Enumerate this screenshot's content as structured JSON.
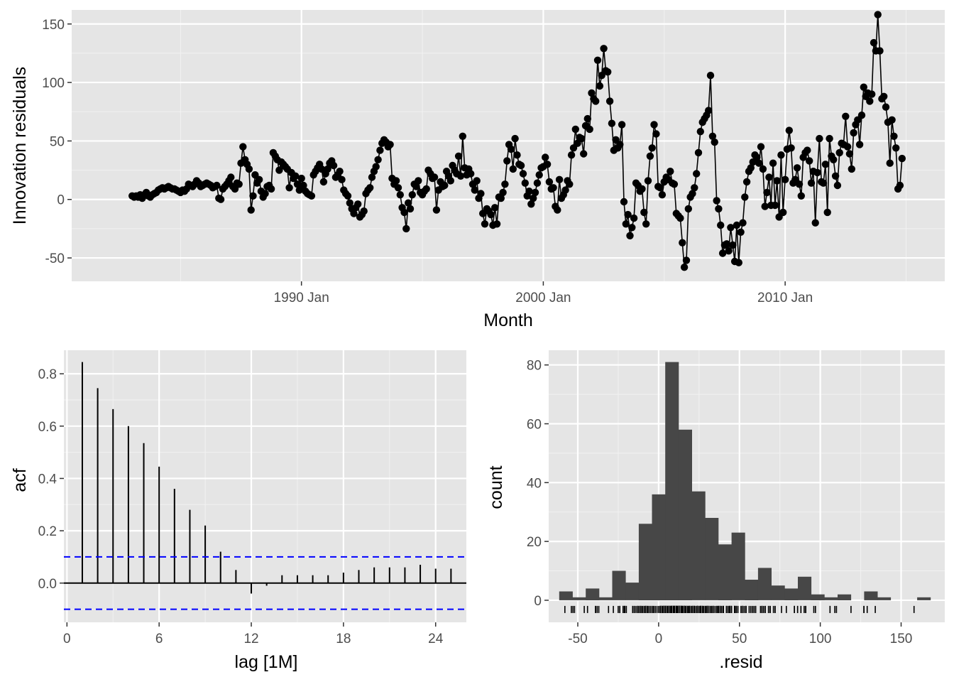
{
  "colors": {
    "panel": "#e5e5e5",
    "grid_major": "#ffffff",
    "grid_minor": "#f2f2f2",
    "data": "#000000",
    "ci": "#0000ff",
    "hist": "#474747"
  },
  "chart_data": [
    {
      "type": "line",
      "xlabel": "Month",
      "ylabel": "Innovation residuals",
      "x_ticks": [
        "1990 Jan",
        "2000 Jan",
        "2010 Jan"
      ],
      "y_ticks": [
        "-50",
        "0",
        "50",
        "100",
        "150"
      ],
      "xlim": [
        1980.5,
        2016.6
      ],
      "ylim": [
        -70,
        162
      ],
      "x_start": 1983.0,
      "x_step": 0.08333,
      "y": [
        3,
        2,
        3,
        2,
        4,
        1,
        4,
        6,
        3,
        2,
        4,
        5,
        6,
        8,
        9,
        10,
        9,
        10,
        11,
        10,
        9,
        9,
        8,
        7,
        6,
        8,
        7,
        9,
        13,
        12,
        11,
        13,
        16,
        14,
        11,
        12,
        13,
        14,
        13,
        12,
        10,
        11,
        12,
        1,
        0,
        9,
        11,
        13,
        16,
        19,
        11,
        9,
        14,
        13,
        31,
        45,
        34,
        30,
        26,
        -9,
        3,
        21,
        14,
        17,
        7,
        2,
        5,
        11,
        12,
        9,
        40,
        37,
        34,
        25,
        32,
        30,
        28,
        26,
        10,
        23,
        18,
        20,
        13,
        8,
        18,
        12,
        7,
        5,
        4,
        3,
        21,
        24,
        27,
        30,
        26,
        15,
        22,
        26,
        31,
        33,
        29,
        19,
        21,
        24,
        17,
        8,
        5,
        3,
        -3,
        -8,
        -12,
        -7,
        -4,
        -15,
        -13,
        -10,
        5,
        8,
        10,
        19,
        24,
        28,
        34,
        42,
        48,
        51,
        49,
        45,
        47,
        18,
        13,
        16,
        10,
        4,
        -7,
        -11,
        -25,
        -3,
        -8,
        4,
        13,
        11,
        16,
        6,
        4,
        7,
        9,
        25,
        22,
        18,
        19,
        -9,
        8,
        15,
        11,
        12,
        24,
        20,
        16,
        29,
        25,
        22,
        37,
        20,
        54,
        27,
        21,
        26,
        22,
        13,
        8,
        16,
        1,
        5,
        -12,
        -21,
        -8,
        -10,
        -13,
        -22,
        -7,
        -21,
        2,
        1,
        6,
        13,
        33,
        47,
        43,
        26,
        52,
        38,
        30,
        29,
        22,
        14,
        3,
        7,
        -4,
        1,
        6,
        14,
        21,
        27,
        28,
        36,
        30,
        15,
        9,
        10,
        -6,
        -9,
        17,
        1,
        4,
        8,
        16,
        13,
        38,
        44,
        60,
        48,
        53,
        52,
        39,
        63,
        69,
        60,
        91,
        86,
        84,
        119,
        97,
        106,
        129,
        110,
        109,
        84,
        65,
        42,
        51,
        44,
        47,
        64,
        -2,
        -21,
        -13,
        -31,
        -24,
        -16,
        14,
        12,
        7,
        9,
        -11,
        -21,
        16,
        37,
        44,
        64,
        56,
        11,
        10,
        4,
        15,
        19,
        17,
        24,
        14,
        13,
        -12,
        -14,
        -16,
        -37,
        -58,
        -52,
        -8,
        2,
        5,
        10,
        22,
        40,
        58,
        66,
        69,
        72,
        76,
        106,
        54,
        49,
        -1,
        -8,
        -22,
        -46,
        -39,
        -38,
        -44,
        -24,
        -39,
        -53,
        -22,
        -54,
        -28,
        -20,
        2,
        15,
        24,
        27,
        32,
        38,
        36,
        31,
        45,
        26,
        -6,
        6,
        19,
        -5,
        31,
        -5,
        16,
        -15,
        38,
        -11,
        17,
        43,
        59,
        44,
        14,
        17,
        27,
        13,
        3,
        36,
        40,
        42,
        33,
        14,
        24,
        -20,
        23,
        52,
        15,
        14,
        30,
        -11,
        52,
        37,
        34,
        20,
        12,
        40,
        48,
        47,
        71,
        45,
        39,
        26,
        57,
        64,
        68,
        47,
        72,
        96,
        88,
        91,
        84,
        90,
        134,
        127,
        158,
        127,
        86,
        88,
        79,
        66,
        31,
        68,
        54,
        44,
        9,
        12,
        35
      ]
    },
    {
      "type": "bar",
      "xlabel": "lag [1M]",
      "ylabel": "acf",
      "x_ticks": [
        "0",
        "6",
        "12",
        "18",
        "24"
      ],
      "y_ticks": [
        "0.0",
        "0.2",
        "0.4",
        "0.6",
        "0.8"
      ],
      "xlim": [
        -0.2,
        26
      ],
      "ylim": [
        -0.15,
        0.89
      ],
      "ci": 0.1,
      "lags": [
        1,
        2,
        3,
        4,
        5,
        6,
        7,
        8,
        9,
        10,
        11,
        12,
        13,
        14,
        15,
        16,
        17,
        18,
        19,
        20,
        21,
        22,
        23,
        24,
        25
      ],
      "values": [
        0.845,
        0.745,
        0.665,
        0.6,
        0.535,
        0.445,
        0.36,
        0.28,
        0.22,
        0.12,
        0.05,
        -0.04,
        -0.01,
        0.03,
        0.03,
        0.03,
        0.03,
        0.04,
        0.05,
        0.06,
        0.06,
        0.06,
        0.07,
        0.055,
        0.055
      ]
    },
    {
      "type": "bar",
      "xlabel": ".resid",
      "ylabel": "count",
      "x_ticks": [
        "-50",
        "0",
        "50",
        "100",
        "150"
      ],
      "y_ticks": [
        "0",
        "20",
        "40",
        "60",
        "80"
      ],
      "xlim": [
        -68,
        177
      ],
      "ylim": [
        -7.5,
        85
      ],
      "bin_start": -61.5,
      "bin_width": 8.2,
      "counts": [
        3,
        1,
        4,
        1,
        10,
        6,
        26,
        36,
        81,
        58,
        37,
        28,
        19,
        23,
        7,
        11,
        5,
        4,
        8,
        2,
        1,
        2,
        0,
        3,
        1,
        0,
        0,
        1
      ]
    }
  ]
}
